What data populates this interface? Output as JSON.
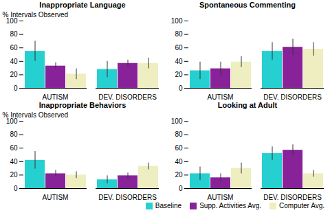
{
  "chart_data": [
    {
      "type": "bar",
      "title": "Inappropriate Language",
      "categories": [
        "AUTISM",
        "DEV. DISORDERS"
      ],
      "series": [
        {
          "name": "Baseline",
          "color": "#26D0D0",
          "values": [
            55,
            28
          ],
          "errors": [
            15,
            12
          ]
        },
        {
          "name": "Supp. Activities Avg.",
          "color": "#882299",
          "values": [
            33,
            37
          ],
          "errors": [
            5,
            5
          ]
        },
        {
          "name": "Computer Avg.",
          "color": "#EEEEC0",
          "values": [
            21,
            37
          ],
          "errors": [
            8,
            8
          ]
        }
      ],
      "ylabel": "% Intervals Observed",
      "ylim": [
        0,
        100
      ],
      "yticks": [
        0,
        20,
        40,
        60,
        80,
        100
      ],
      "grid": false
    },
    {
      "type": "bar",
      "title": "Spontaneous Commenting",
      "categories": [
        "AUTISM",
        "DEV. DISORDERS"
      ],
      "series": [
        {
          "name": "Baseline",
          "color": "#26D0D0",
          "values": [
            26,
            55
          ],
          "errors": [
            13,
            13
          ]
        },
        {
          "name": "Supp. Activities Avg.",
          "color": "#882299",
          "values": [
            29,
            61
          ],
          "errors": [
            10,
            12
          ]
        },
        {
          "name": "Computer Avg.",
          "color": "#EEEEC0",
          "values": [
            39,
            58
          ],
          "errors": [
            8,
            10
          ]
        }
      ],
      "ylim": [
        0,
        100
      ],
      "yticks": [
        0,
        20,
        40,
        60,
        80,
        100
      ],
      "grid": false
    },
    {
      "type": "bar",
      "title": "Inappropriate Behaviors",
      "categories": [
        "AUTISM",
        "DEV. DISORDERS"
      ],
      "series": [
        {
          "name": "Baseline",
          "color": "#26D0D0",
          "values": [
            42,
            13
          ],
          "errors": [
            13,
            6
          ]
        },
        {
          "name": "Supp. Activities Avg.",
          "color": "#882299",
          "values": [
            22,
            19
          ],
          "errors": [
            5,
            4
          ]
        },
        {
          "name": "Computer Avg.",
          "color": "#EEEEC0",
          "values": [
            20,
            33
          ],
          "errors": [
            5,
            5
          ]
        }
      ],
      "ylabel": "% Intervals Observed",
      "ylim": [
        0,
        100
      ],
      "yticks": [
        0,
        20,
        40,
        60,
        80,
        100
      ],
      "grid": false
    },
    {
      "type": "bar",
      "title": "Looking at Adult",
      "categories": [
        "AUTISM",
        "DEV. DISORDERS"
      ],
      "series": [
        {
          "name": "Baseline",
          "color": "#26D0D0",
          "values": [
            22,
            52
          ],
          "errors": [
            10,
            10
          ]
        },
        {
          "name": "Supp. Activities Avg.",
          "color": "#882299",
          "values": [
            16,
            57
          ],
          "errors": [
            6,
            8
          ]
        },
        {
          "name": "Computer Avg.",
          "color": "#EEEEC0",
          "values": [
            30,
            22
          ],
          "errors": [
            8,
            5
          ]
        }
      ],
      "ylim": [
        0,
        100
      ],
      "yticks": [
        0,
        20,
        40,
        60,
        80,
        100
      ],
      "grid": false,
      "legend": "lower right"
    }
  ]
}
